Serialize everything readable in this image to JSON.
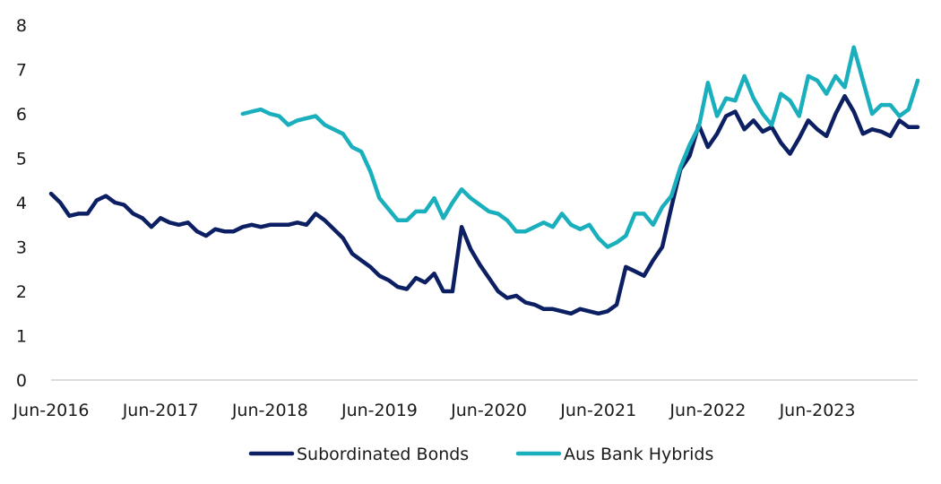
{
  "chart_data": {
    "type": "line",
    "title": "",
    "xlabel": "",
    "ylabel": "",
    "ylim": [
      0,
      8
    ],
    "yticks": [
      "0",
      "1",
      "2",
      "3",
      "4",
      "5",
      "6",
      "7",
      "8"
    ],
    "xticks": [
      "Jun-2016",
      "Jun-2017",
      "Jun-2018",
      "Jun-2019",
      "Jun-2020",
      "Jun-2021",
      "Jun-2022",
      "Jun-2023"
    ],
    "grid": false,
    "legend_position": "bottom",
    "x_start": "2016-06",
    "x_end": "2024-05",
    "series": [
      {
        "name": "Subordinated Bonds",
        "color": "#0d1f63",
        "x": [
          "2016-06",
          "2016-07",
          "2016-08",
          "2016-09",
          "2016-10",
          "2016-11",
          "2016-12",
          "2017-01",
          "2017-02",
          "2017-03",
          "2017-04",
          "2017-05",
          "2017-06",
          "2017-07",
          "2017-08",
          "2017-09",
          "2017-10",
          "2017-11",
          "2017-12",
          "2018-01",
          "2018-02",
          "2018-03",
          "2018-04",
          "2018-05",
          "2018-06",
          "2018-07",
          "2018-08",
          "2018-09",
          "2018-10",
          "2018-11",
          "2018-12",
          "2019-01",
          "2019-02",
          "2019-03",
          "2019-04",
          "2019-05",
          "2019-06",
          "2019-07",
          "2019-08",
          "2019-09",
          "2019-10",
          "2019-11",
          "2019-12",
          "2020-01",
          "2020-02",
          "2020-03",
          "2020-04",
          "2020-05",
          "2020-06",
          "2020-07",
          "2020-08",
          "2020-09",
          "2020-10",
          "2020-11",
          "2020-12",
          "2021-01",
          "2021-02",
          "2021-03",
          "2021-04",
          "2021-05",
          "2021-06",
          "2021-07",
          "2021-08",
          "2021-09",
          "2021-10",
          "2021-11",
          "2021-12",
          "2022-01",
          "2022-02",
          "2022-03",
          "2022-04",
          "2022-05",
          "2022-06",
          "2022-07",
          "2022-08",
          "2022-09",
          "2022-10",
          "2022-11",
          "2022-12",
          "2023-01",
          "2023-02",
          "2023-03",
          "2023-04",
          "2023-05",
          "2023-06",
          "2023-07",
          "2023-08",
          "2023-09",
          "2023-10",
          "2023-11",
          "2023-12",
          "2024-01",
          "2024-02",
          "2024-03",
          "2024-04",
          "2024-05"
        ],
        "values": [
          4.2,
          4.0,
          3.7,
          3.75,
          3.75,
          4.05,
          4.15,
          4.0,
          3.95,
          3.75,
          3.65,
          3.45,
          3.65,
          3.55,
          3.5,
          3.55,
          3.35,
          3.25,
          3.4,
          3.35,
          3.35,
          3.45,
          3.5,
          3.45,
          3.5,
          3.5,
          3.5,
          3.55,
          3.5,
          3.75,
          3.6,
          3.4,
          3.2,
          2.85,
          2.7,
          2.55,
          2.35,
          2.25,
          2.1,
          2.05,
          2.3,
          2.2,
          2.4,
          2.0,
          2.0,
          3.45,
          2.95,
          2.6,
          2.3,
          2.0,
          1.85,
          1.9,
          1.75,
          1.7,
          1.6,
          1.6,
          1.55,
          1.5,
          1.6,
          1.55,
          1.5,
          1.55,
          1.7,
          2.55,
          2.45,
          2.35,
          2.7,
          3.0,
          3.9,
          4.75,
          5.05,
          5.75,
          5.25,
          5.55,
          5.95,
          6.05,
          5.65,
          5.85,
          5.6,
          5.7,
          5.35,
          5.1,
          5.45,
          5.85,
          5.65,
          5.5,
          6.0,
          6.4,
          6.05,
          5.55,
          5.65,
          5.6,
          5.5,
          5.85,
          5.7,
          5.7
        ]
      },
      {
        "name": "Aus Bank Hybrids",
        "color": "#1aafbd",
        "x": [
          "2018-03",
          "2018-04",
          "2018-05",
          "2018-06",
          "2018-07",
          "2018-08",
          "2018-09",
          "2018-10",
          "2018-11",
          "2018-12",
          "2019-01",
          "2019-02",
          "2019-03",
          "2019-04",
          "2019-05",
          "2019-06",
          "2019-07",
          "2019-08",
          "2019-09",
          "2019-10",
          "2019-11",
          "2019-12",
          "2020-01",
          "2020-02",
          "2020-03",
          "2020-04",
          "2020-05",
          "2020-06",
          "2020-07",
          "2020-08",
          "2020-09",
          "2020-10",
          "2020-11",
          "2020-12",
          "2021-01",
          "2021-02",
          "2021-03",
          "2021-04",
          "2021-05",
          "2021-06",
          "2021-07",
          "2021-08",
          "2021-09",
          "2021-10",
          "2021-11",
          "2021-12",
          "2022-01",
          "2022-02",
          "2022-03",
          "2022-04",
          "2022-05",
          "2022-06",
          "2022-07",
          "2022-08",
          "2022-09",
          "2022-10",
          "2022-11",
          "2022-12",
          "2023-01",
          "2023-02",
          "2023-03",
          "2023-04",
          "2023-05",
          "2023-06",
          "2023-07",
          "2023-08",
          "2023-09",
          "2023-10",
          "2023-11",
          "2023-12",
          "2024-01",
          "2024-02",
          "2024-03",
          "2024-04",
          "2024-05"
        ],
        "values": [
          6.0,
          6.05,
          6.1,
          6.0,
          5.95,
          5.75,
          5.85,
          5.9,
          5.95,
          5.75,
          5.65,
          5.55,
          5.25,
          5.15,
          4.7,
          4.1,
          3.85,
          3.6,
          3.6,
          3.8,
          3.8,
          4.1,
          3.65,
          4.0,
          4.3,
          4.1,
          3.95,
          3.8,
          3.75,
          3.6,
          3.35,
          3.35,
          3.45,
          3.55,
          3.45,
          3.75,
          3.5,
          3.4,
          3.5,
          3.2,
          3.0,
          3.1,
          3.25,
          3.75,
          3.75,
          3.5,
          3.9,
          4.15,
          4.8,
          5.3,
          5.7,
          6.7,
          5.95,
          6.35,
          6.3,
          6.85,
          6.35,
          6.0,
          5.75,
          6.45,
          6.3,
          5.95,
          6.85,
          6.75,
          6.45,
          6.85,
          6.6,
          7.5,
          6.75,
          6.0,
          6.2,
          6.2,
          5.95,
          6.1,
          6.75
        ]
      }
    ]
  }
}
